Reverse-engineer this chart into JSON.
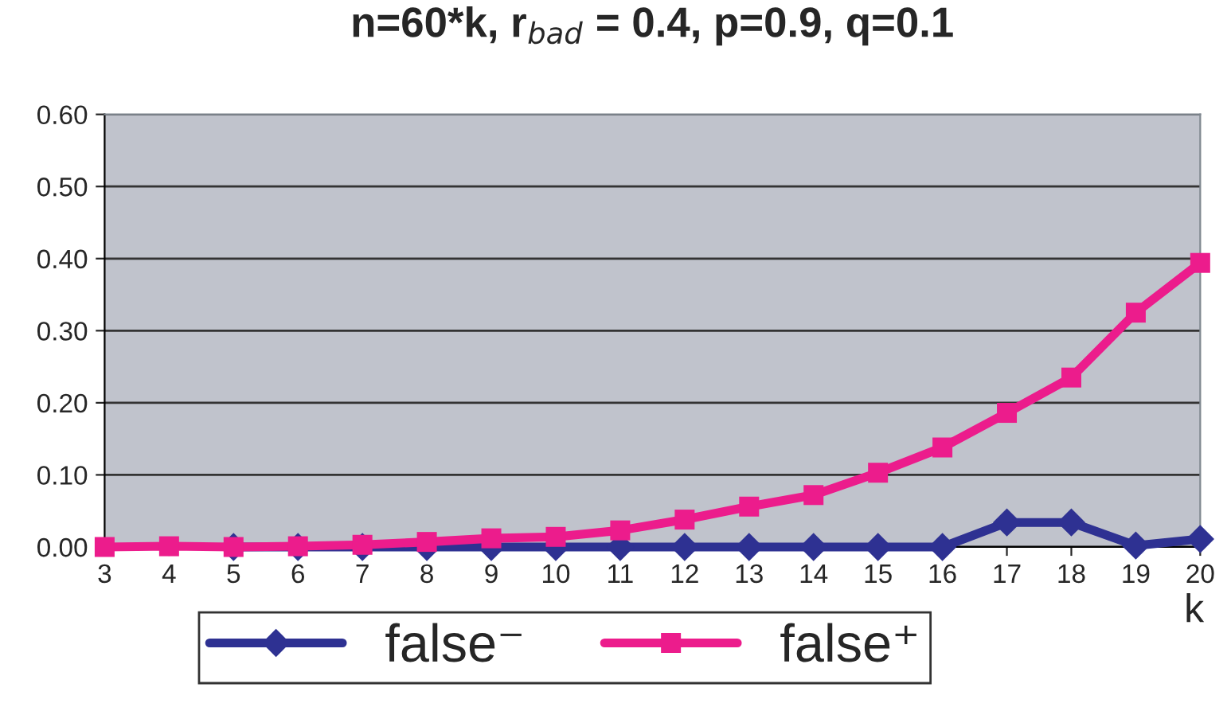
{
  "chart_data": {
    "type": "line",
    "title": "n=60*k, r$_{bad}$ = 0.4, p=0.9, q=0.1",
    "xlabel": "k",
    "categories": [
      "3",
      "4",
      "5",
      "6",
      "7",
      "8",
      "9",
      "10",
      "11",
      "12",
      "13",
      "14",
      "15",
      "16",
      "17",
      "18",
      "19",
      "20"
    ],
    "series": [
      {
        "name": "false⁻",
        "color": "#2e3192",
        "marker": "diamond",
        "values": [
          null,
          null,
          0,
          0,
          0,
          0,
          0,
          0,
          0,
          0,
          0,
          0,
          0,
          0,
          0.034,
          0.034,
          0.002,
          0.011
        ]
      },
      {
        "name": "false⁺",
        "color": "#ec1c8c",
        "marker": "square",
        "values": [
          0,
          0.001,
          0,
          0.001,
          0.003,
          0.007,
          0.012,
          0.014,
          0.023,
          0.038,
          0.056,
          0.072,
          0.103,
          0.138,
          0.186,
          0.235,
          0.325,
          0.394
        ]
      }
    ],
    "ylim": [
      0,
      0.6
    ],
    "yticks": [
      {
        "value": 0,
        "label": "0.00"
      },
      {
        "value": 0.1,
        "label": "0.10"
      },
      {
        "value": 0.2,
        "label": "0.20"
      },
      {
        "value": 0.3,
        "label": "0.30"
      },
      {
        "value": 0.4,
        "label": "0.40"
      },
      {
        "value": 0.5,
        "label": "0.50"
      },
      {
        "value": 0.6,
        "label": "0.60"
      }
    ],
    "grid": "y",
    "legend": "bottom",
    "line_style": "solid"
  }
}
